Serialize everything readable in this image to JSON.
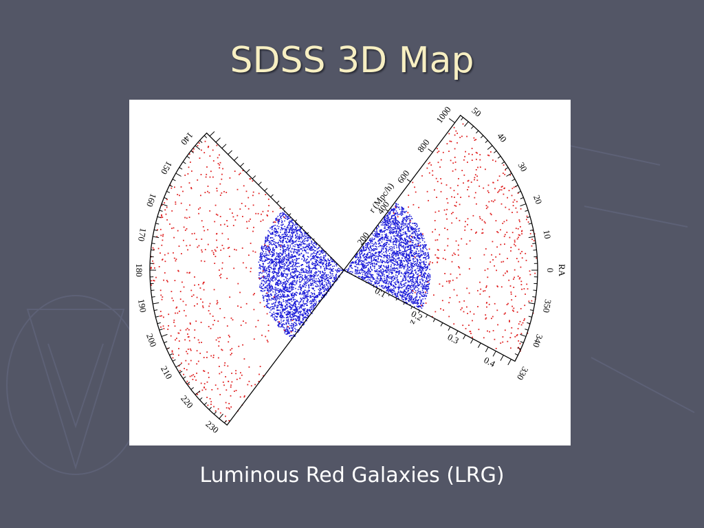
{
  "slide": {
    "title": "SDSS 3D Map",
    "caption": "Luminous Red Galaxies (LRG)"
  },
  "colors": {
    "background": "#535666",
    "title": "#f7efc2",
    "main_sample": "#1a1ad8",
    "lrg_sample": "#e02020"
  },
  "chart_data": {
    "type": "scatter",
    "title": "",
    "wedges": [
      {
        "side": "left",
        "ra_range": [
          135,
          233
        ]
      },
      {
        "side": "right",
        "ra_range": [
          -28,
          53
        ]
      }
    ],
    "ra_ticks_left": [
      "140",
      "150",
      "160",
      "170",
      "180",
      "190",
      "200",
      "210",
      "220",
      "230"
    ],
    "ra_ticks_right": [
      "50",
      "40",
      "30",
      "20",
      "10",
      "0",
      "350",
      "340",
      "330"
    ],
    "ra_axis_label": "RA",
    "r_axis_label": "r (Mpc/h)",
    "r_ticks": [
      "200",
      "400",
      "600",
      "800",
      "1000"
    ],
    "z_axis_label": "z",
    "z_ticks": [
      "0.1",
      "0.2",
      "0.3",
      "0.4"
    ],
    "z_max": 0.45,
    "series": [
      {
        "color": "#1a1ad8",
        "z_range": [
          0,
          0.2
        ]
      },
      {
        "color": "#e02020",
        "z_range": [
          0.15,
          0.45
        ]
      }
    ]
  }
}
